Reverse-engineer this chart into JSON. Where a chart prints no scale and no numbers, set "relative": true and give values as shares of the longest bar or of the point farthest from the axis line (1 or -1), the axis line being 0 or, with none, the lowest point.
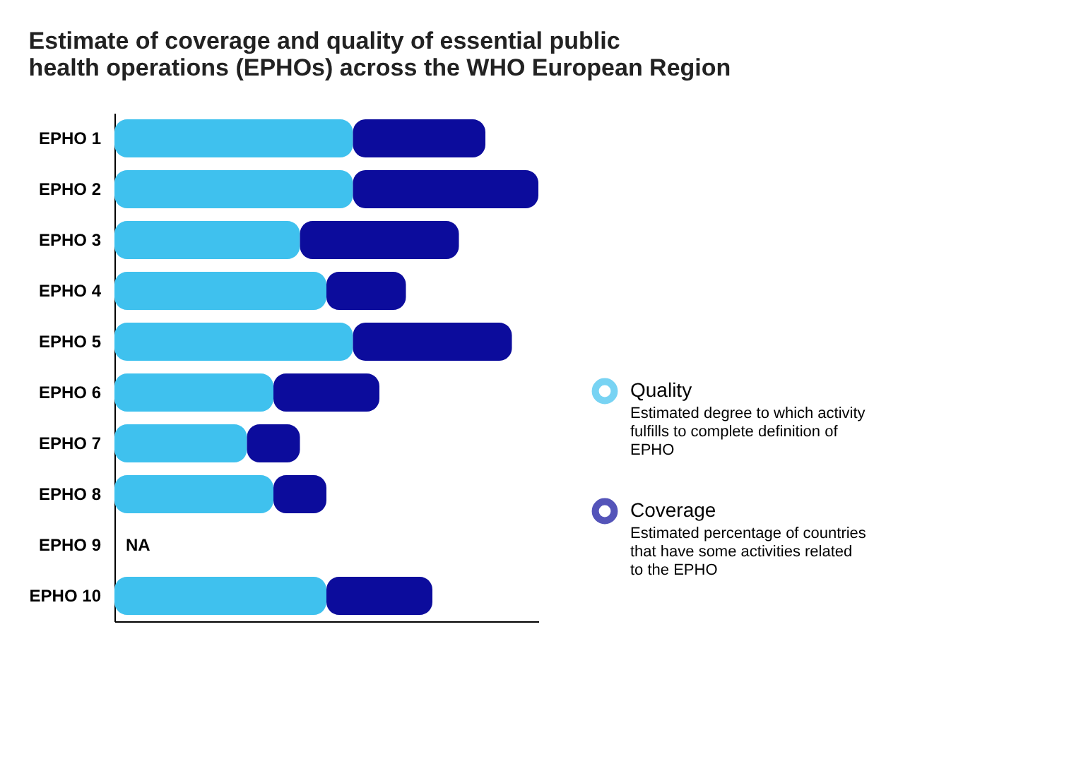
{
  "chart_data": {
    "type": "bar",
    "orientation": "horizontal",
    "stacked": true,
    "relative": true,
    "title": "Estimate of coverage and quality of essential public health operations (EPHOs) across the WHO European Region",
    "categories": [
      "EPHO 1",
      "EPHO 2",
      "EPHO 3",
      "EPHO 4",
      "EPHO 5",
      "EPHO 6",
      "EPHO 7",
      "EPHO 8",
      "EPHO 9",
      "EPHO 10"
    ],
    "series": [
      {
        "name": "Quality",
        "color": "#3fc1ee",
        "values": [
          0.5625,
          0.5625,
          0.4375,
          0.5,
          0.5625,
          0.375,
          0.3125,
          0.375,
          null,
          0.5
        ]
      },
      {
        "name": "Coverage",
        "color": "#0c0c9c",
        "values": [
          0.3125,
          0.4375,
          0.375,
          0.1875,
          0.375,
          0.25,
          0.125,
          0.125,
          null,
          0.25
        ]
      }
    ],
    "annotations": [
      "NA",
      "Estimated degree to which activity fulfills to complete definition of EPHO",
      "Estimated percentage of countries that have some activities related to the EPHO"
    ],
    "legend": "right",
    "tick_labels": "y",
    "grid": false
  }
}
